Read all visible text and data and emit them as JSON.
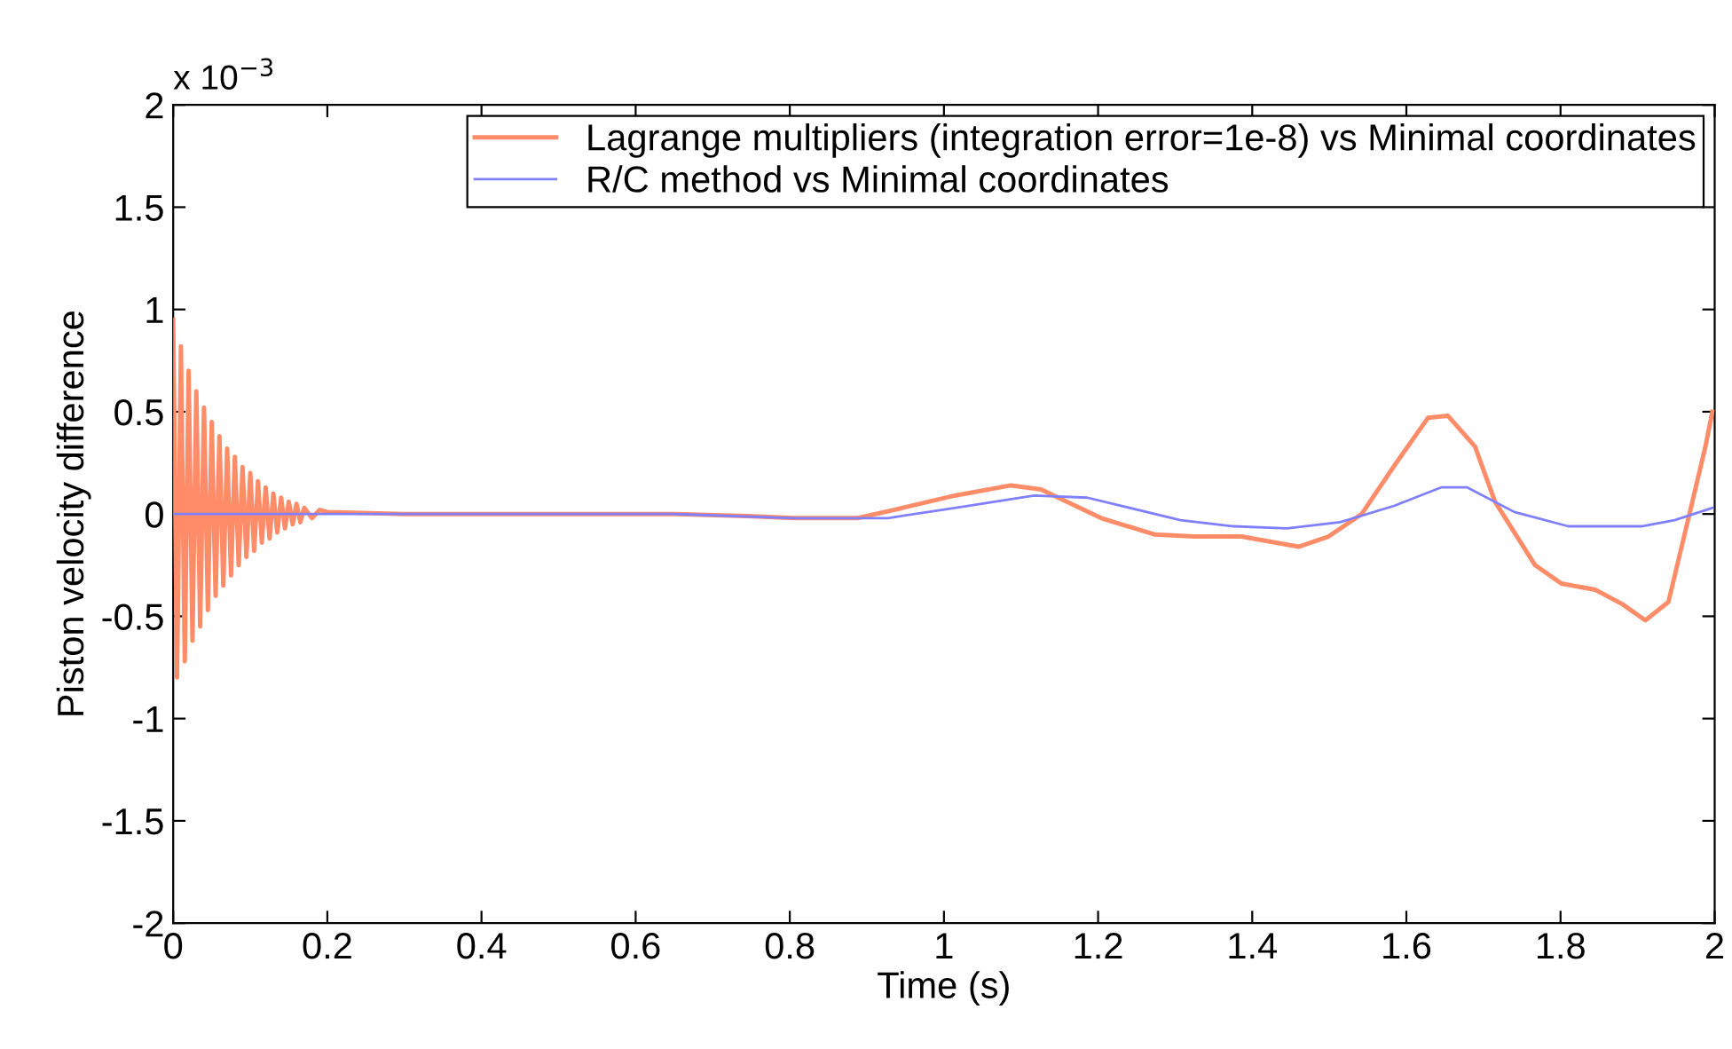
{
  "chart_data": {
    "type": "line",
    "xlabel": "Time (s)",
    "ylabel": "Piston velocity difference",
    "annotations": [
      "x 10$^{−3}$"
    ],
    "xlim": [
      0,
      2
    ],
    "ylim": [
      -2,
      2
    ],
    "xticks": [
      0,
      0.2,
      0.4,
      0.6,
      0.8,
      1,
      1.2,
      1.4,
      1.6,
      1.8,
      2
    ],
    "yticks": [
      {
        "value": -2,
        "label": "-2"
      },
      {
        "value": -1.5,
        "label": "-1.5"
      },
      {
        "value": -1,
        "label": "-1"
      },
      {
        "value": -0.5,
        "label": "-0.5"
      },
      0,
      0.5,
      1,
      1.5,
      2
    ],
    "grid": false,
    "legend": "top right",
    "line_style": "solid",
    "marker": "none",
    "series": [
      {
        "name": "Lagrange multipliers (integration error=1e-8) vs Minimal coordinates",
        "color": "#ff8c69",
        "x": [
          0,
          0.005,
          0.01,
          0.015,
          0.02,
          0.025,
          0.03,
          0.035,
          0.04,
          0.045,
          0.05,
          0.055,
          0.06,
          0.065,
          0.07,
          0.075,
          0.08,
          0.085,
          0.09,
          0.095,
          0.1,
          0.105,
          0.11,
          0.115,
          0.12,
          0.125,
          0.13,
          0.135,
          0.14,
          0.145,
          0.15,
          0.155,
          0.16,
          0.165,
          0.17,
          0.18,
          0.19,
          0.2,
          0.3,
          0.65,
          0.745,
          0.806,
          0.888,
          0.935,
          1.014,
          1.087,
          1.126,
          1.204,
          1.273,
          1.325,
          1.386,
          1.46,
          1.499,
          1.542,
          1.585,
          1.628,
          1.654,
          1.689,
          1.715,
          1.767,
          1.801,
          1.845,
          1.88,
          1.91,
          1.94,
          1.966,
          1.988,
          1.997
        ],
        "values": [
          0.95,
          -0.8,
          0.82,
          -0.72,
          0.7,
          -0.62,
          0.6,
          -0.55,
          0.52,
          -0.47,
          0.45,
          -0.4,
          0.38,
          -0.35,
          0.32,
          -0.3,
          0.28,
          -0.25,
          0.23,
          -0.21,
          0.2,
          -0.18,
          0.16,
          -0.14,
          0.13,
          -0.12,
          0.1,
          -0.09,
          0.08,
          -0.07,
          0.06,
          -0.05,
          0.05,
          -0.04,
          0.03,
          -0.02,
          0.02,
          0.01,
          0,
          0,
          -0.01,
          -0.02,
          -0.02,
          0.02,
          0.09,
          0.14,
          0.12,
          -0.02,
          -0.1,
          -0.11,
          -0.11,
          -0.16,
          -0.11,
          0,
          0.24,
          0.47,
          0.48,
          0.33,
          0.06,
          -0.25,
          -0.34,
          -0.37,
          -0.44,
          -0.52,
          -0.43,
          -0.02,
          0.33,
          0.5
        ]
      },
      {
        "name": "R/C method vs Minimal coordinates",
        "color": "#8080ff",
        "x": [
          0,
          0.65,
          0.806,
          0.927,
          1.014,
          1.117,
          1.186,
          1.307,
          1.376,
          1.445,
          1.514,
          1.584,
          1.645,
          1.679,
          1.74,
          1.81,
          1.905,
          1.948,
          1.997
        ],
        "values": [
          0,
          0,
          -0.02,
          -0.02,
          0.03,
          0.09,
          0.08,
          -0.03,
          -0.06,
          -0.07,
          -0.04,
          0.04,
          0.13,
          0.13,
          0.01,
          -0.06,
          -0.06,
          -0.03,
          0.03
        ]
      }
    ]
  }
}
